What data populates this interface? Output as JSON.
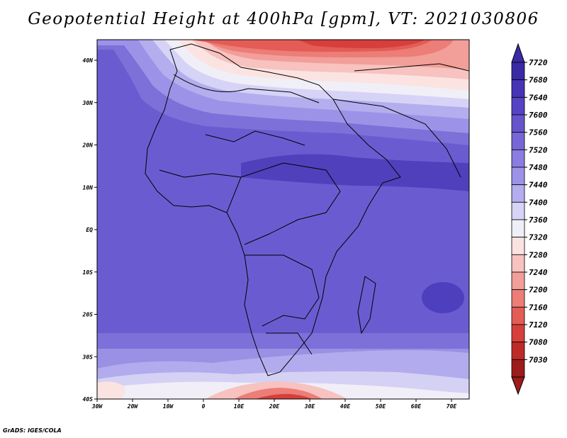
{
  "map": {
    "title": "Geopotential Height at 400hPa [gpm], VT: 2021030806",
    "credit": "GrADS: IGES/COLA",
    "lat_labels": [
      "40N",
      "30N",
      "20N",
      "10N",
      "EQ",
      "10S",
      "20S",
      "30S",
      "40S"
    ],
    "lon_labels": [
      "30W",
      "20W",
      "10W",
      "0",
      "10E",
      "20E",
      "30E",
      "40E",
      "50E",
      "60E",
      "70E"
    ],
    "colorbar_levels": [
      "7720",
      "7680",
      "7640",
      "7600",
      "7560",
      "7520",
      "7480",
      "7440",
      "7400",
      "7360",
      "7320",
      "7280",
      "7240",
      "7200",
      "7160",
      "7120",
      "7080",
      "7030"
    ],
    "colorbar_colors": [
      "#3a2aa6",
      "#4634b6",
      "#5543c4",
      "#6654cc",
      "#7666d6",
      "#8a7ce0",
      "#9c93e8",
      "#b4aeef",
      "#d6d3f6",
      "#f0eff8",
      "#fbe3e1",
      "#f7c2bf",
      "#f29e99",
      "#ec7d77",
      "#e35c56",
      "#d63f3b",
      "#bd2a27",
      "#9c1b1b"
    ],
    "extent": {
      "lon_min": -30,
      "lon_max": 75,
      "lat_min": -40,
      "lat_max": 45
    }
  }
}
